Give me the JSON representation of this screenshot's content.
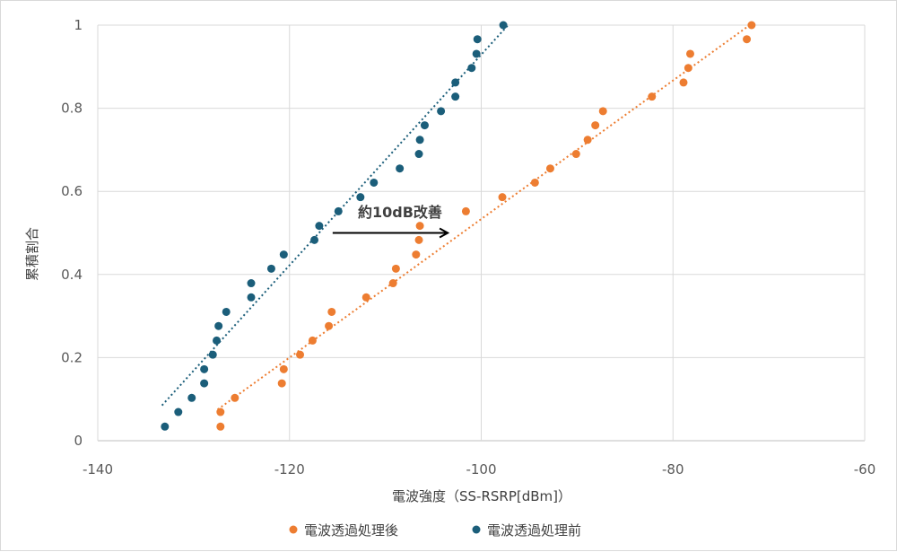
{
  "chart_data": {
    "type": "scatter",
    "xlabel": "電波強度（SS-RSRP[dBm]）",
    "ylabel": "累積割合",
    "xlim": [
      -140,
      -60
    ],
    "ylim": [
      0,
      1
    ],
    "x_ticks": [
      "-140",
      "-120",
      "-100",
      "-80",
      "-60"
    ],
    "y_ticks": [
      "0",
      "0.2",
      "0.4",
      "0.6",
      "0.8",
      "1"
    ],
    "grid": true,
    "legend_position": "bottom",
    "annotation": {
      "text": "約10dB改善",
      "arrow_from": [
        -115.5,
        0.5
      ],
      "arrow_to": [
        -103.5,
        0.5
      ]
    },
    "series": [
      {
        "name": "電波透過処理後",
        "color": "#ED7D31",
        "trendline": {
          "x": [
            -127.5,
            -72.0
          ],
          "y": [
            0.075,
            1.0
          ]
        },
        "points": [
          [
            -127.2,
            0.034
          ],
          [
            -127.2,
            0.069
          ],
          [
            -125.7,
            0.103
          ],
          [
            -120.8,
            0.138
          ],
          [
            -120.6,
            0.172
          ],
          [
            -118.9,
            0.207
          ],
          [
            -117.6,
            0.241
          ],
          [
            -115.9,
            0.276
          ],
          [
            -115.6,
            0.31
          ],
          [
            -112.0,
            0.345
          ],
          [
            -109.2,
            0.379
          ],
          [
            -108.9,
            0.414
          ],
          [
            -106.8,
            0.448
          ],
          [
            -106.5,
            0.483
          ],
          [
            -106.4,
            0.517
          ],
          [
            -101.6,
            0.552
          ],
          [
            -97.8,
            0.586
          ],
          [
            -94.4,
            0.621
          ],
          [
            -92.8,
            0.655
          ],
          [
            -90.1,
            0.69
          ],
          [
            -88.9,
            0.724
          ],
          [
            -88.1,
            0.759
          ],
          [
            -87.3,
            0.793
          ],
          [
            -82.2,
            0.828
          ],
          [
            -78.9,
            0.862
          ],
          [
            -78.4,
            0.897
          ],
          [
            -78.2,
            0.931
          ],
          [
            -72.3,
            0.966
          ],
          [
            -71.8,
            1.0
          ]
        ]
      },
      {
        "name": "電波透過処理前",
        "color": "#1B5E7A",
        "trendline": {
          "x": [
            -133.3,
            -97.2
          ],
          "y": [
            0.085,
            1.0
          ]
        },
        "points": [
          [
            -133.0,
            0.034
          ],
          [
            -131.6,
            0.069
          ],
          [
            -130.2,
            0.103
          ],
          [
            -128.9,
            0.138
          ],
          [
            -128.9,
            0.172
          ],
          [
            -128.0,
            0.207
          ],
          [
            -127.6,
            0.241
          ],
          [
            -127.4,
            0.276
          ],
          [
            -126.6,
            0.31
          ],
          [
            -124.0,
            0.345
          ],
          [
            -124.0,
            0.379
          ],
          [
            -121.9,
            0.414
          ],
          [
            -120.6,
            0.448
          ],
          [
            -117.4,
            0.483
          ],
          [
            -116.9,
            0.517
          ],
          [
            -114.9,
            0.552
          ],
          [
            -112.6,
            0.586
          ],
          [
            -111.2,
            0.621
          ],
          [
            -108.5,
            0.655
          ],
          [
            -106.5,
            0.69
          ],
          [
            -106.4,
            0.724
          ],
          [
            -105.9,
            0.759
          ],
          [
            -104.2,
            0.793
          ],
          [
            -102.7,
            0.828
          ],
          [
            -102.7,
            0.862
          ],
          [
            -101.0,
            0.897
          ],
          [
            -100.5,
            0.931
          ],
          [
            -100.4,
            0.966
          ],
          [
            -97.7,
            1.0
          ]
        ]
      }
    ]
  }
}
